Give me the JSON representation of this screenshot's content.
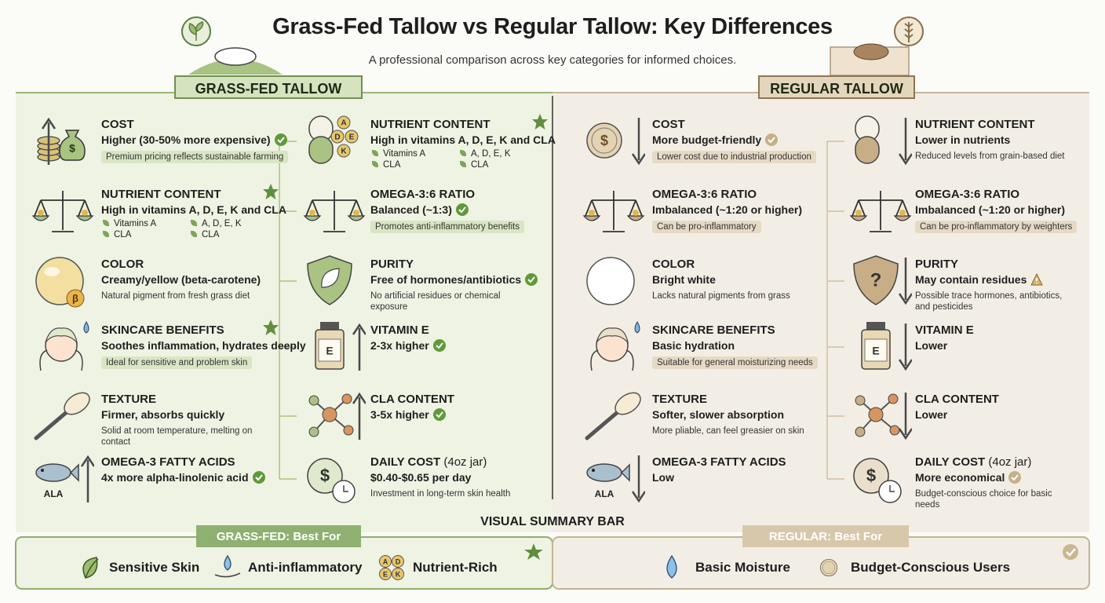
{
  "header": {
    "title": "Grass-Fed Tallow vs Regular Tallow: Key Differences",
    "subtitle": "A professional comparison across key categories for informed choices."
  },
  "panels": [
    {
      "label": "GRASS-FED TALLOW",
      "theme": "green",
      "columns": [
        [
          {
            "icon": "coins",
            "arrow": "up",
            "icon_text": "$",
            "heading": "COST",
            "value": "Higher (30-50% more expensive)",
            "status": "check",
            "tag": "Premium pricing reflects sustainable farming"
          },
          {
            "icon": "scale",
            "heading": "NUTRIENT CONTENT",
            "badge": "star",
            "value": "High in vitamins A, D, E, K and CLA",
            "list": [
              "Vitamins A",
              "A, D, E, K",
              "CLA",
              "CLA"
            ]
          },
          {
            "icon": "orb",
            "icon_text": "β",
            "heading": "COLOR",
            "value": "Creamy/yellow (beta-carotene)",
            "note": "Natural pigment from fresh grass diet"
          },
          {
            "icon": "face",
            "heading": "SKINCARE BENEFITS",
            "badge": "star",
            "value": "Soothes inflammation, hydrates deeply",
            "tag": "Ideal for sensitive and problem skin"
          },
          {
            "icon": "spoon",
            "heading": "TEXTURE",
            "value": "Firmer, absorbs quickly",
            "note": "Solid at room temperature, melting on contact"
          },
          {
            "icon": "fish",
            "arrow": "up",
            "icon_text": "ALA",
            "heading": "OMEGA-3 FATTY ACIDS",
            "value": "4x more alpha-linolenic acid",
            "status": "check"
          }
        ],
        [
          {
            "icon": "capsule",
            "icon_letters": [
              "A",
              "D",
              "E",
              "K"
            ],
            "heading": "NUTRIENT CONTENT",
            "badge": "star",
            "value": "High in vitamins A, D, E, K and CLA",
            "list": [
              "Vitamins A",
              "A, D, E, K",
              "CLA",
              "CLA"
            ]
          },
          {
            "icon": "scale",
            "heading": "OMEGA-3:6 RATIO",
            "value": "Balanced (~1:3)",
            "status": "check",
            "tag": "Promotes anti-inflammatory benefits"
          },
          {
            "icon": "shield",
            "heading": "PURITY",
            "value": "Free of hormones/antibiotics",
            "status": "check",
            "note": "No artificial residues or chemical exposure"
          },
          {
            "icon": "bottle",
            "arrow": "up",
            "icon_text": "E",
            "heading": "VITAMIN E",
            "value": "2-3x higher",
            "status": "check"
          },
          {
            "icon": "molecule",
            "arrow": "up",
            "heading": "CLA CONTENT",
            "value": "3-5x higher",
            "status": "check"
          },
          {
            "icon": "clockcoin",
            "icon_text": "$",
            "heading": "DAILY COST",
            "heading_note": "(4oz jar)",
            "value": "$0.40-$0.65 per day",
            "note": "Investment in long-term skin health"
          }
        ]
      ]
    },
    {
      "label": "REGULAR TALLOW",
      "theme": "beige",
      "columns": [
        [
          {
            "icon": "coin",
            "arrow": "down",
            "icon_text": "$",
            "heading": "COST",
            "value": "More budget-friendly",
            "status": "check",
            "tag": "Lower cost due to industrial production"
          },
          {
            "icon": "scale",
            "heading": "OMEGA-3:6 RATIO",
            "value": "Imbalanced (~1:20 or higher)",
            "tag": "Can be pro-inflammatory"
          },
          {
            "icon": "orb",
            "heading": "COLOR",
            "value": "Bright white",
            "note": "Lacks natural pigments from grass"
          },
          {
            "icon": "face",
            "heading": "SKINCARE BENEFITS",
            "value": "Basic hydration",
            "tag": "Suitable for general moisturizing needs"
          },
          {
            "icon": "spoon",
            "heading": "TEXTURE",
            "value": "Softer, slower absorption",
            "note": "More pliable, can feel greasier on skin"
          },
          {
            "icon": "fish",
            "arrow": "down",
            "icon_text": "ALA",
            "heading": "OMEGA-3 FATTY ACIDS",
            "value": "Low"
          }
        ],
        [
          {
            "icon": "capsule",
            "arrow": "down",
            "heading": "NUTRIENT CONTENT",
            "value": "Lower in nutrients",
            "note": "Reduced levels from grain-based diet"
          },
          {
            "icon": "scale",
            "heading": "OMEGA-3:6 RATIO",
            "value": "Imbalanced (~1:20 or higher)",
            "tag": "Can be pro-inflammatory by weighters"
          },
          {
            "icon": "shield",
            "arrow": "down",
            "icon_text": "?",
            "heading": "PURITY",
            "value": "May contain residues",
            "status": "warn",
            "note": "Possible trace hormones, antibiotics, and pesticides"
          },
          {
            "icon": "bottle",
            "arrow": "down",
            "icon_text": "E",
            "heading": "VITAMIN E",
            "value": "Lower"
          },
          {
            "icon": "molecule",
            "arrow": "down",
            "heading": "CLA CONTENT",
            "value": "Lower"
          },
          {
            "icon": "clockcoin",
            "icon_text": "$",
            "heading": "DAILY COST",
            "heading_note": "(4oz jar)",
            "value": "More economical",
            "status": "check",
            "note": "Budget-conscious choice for basic needs"
          }
        ]
      ]
    }
  ],
  "summary": {
    "title": "VISUAL SUMMARY BAR",
    "groups": [
      {
        "label": "GRASS-FED: Best For",
        "theme": "green",
        "items": [
          {
            "icon": "leaf",
            "label": "Sensitive Skin"
          },
          {
            "icon": "handdrop",
            "label": "Anti-inflammatory"
          },
          {
            "icon": "letters",
            "icon_letters": [
              "A",
              "D",
              "E",
              "K"
            ],
            "label": "Nutrient-Rich"
          }
        ]
      },
      {
        "label": "REGULAR: Best For",
        "theme": "beige",
        "items": [
          {
            "icon": "drop",
            "label": "Basic Moisture"
          },
          {
            "icon": "coin",
            "label": "Budget-Conscious Users"
          }
        ]
      }
    ]
  }
}
